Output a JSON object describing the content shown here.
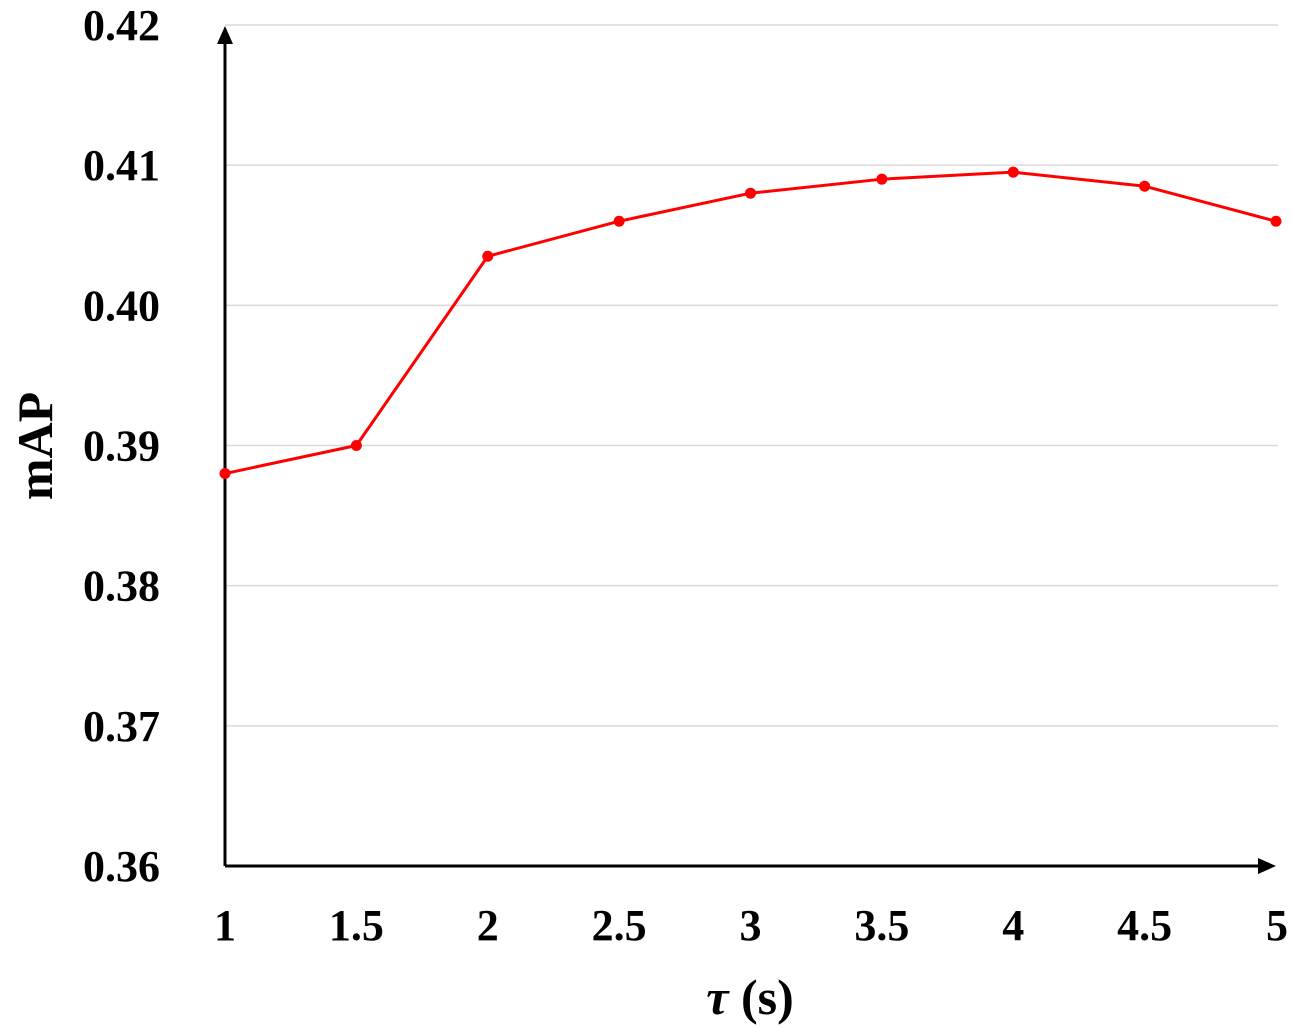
{
  "chart_data": {
    "type": "line",
    "xlabel_symbol": "τ",
    "xlabel_unit": " (s)",
    "ylabel": "mAP",
    "x": [
      1,
      1.5,
      2,
      2.5,
      3,
      3.5,
      4,
      4.5,
      5
    ],
    "x_tick_labels": [
      "1",
      "1.5",
      "2",
      "2.5",
      "3",
      "3.5",
      "4",
      "4.5",
      "5"
    ],
    "y_ticks": [
      0.36,
      0.37,
      0.38,
      0.39,
      0.4,
      0.41,
      0.42
    ],
    "y_tick_labels": [
      "0.36",
      "0.37",
      "0.38",
      "0.39",
      "0.40",
      "0.41",
      "0.42"
    ],
    "xlim": [
      1,
      5
    ],
    "ylim": [
      0.36,
      0.42
    ],
    "grid": "horizontal",
    "series": [
      {
        "values": [
          0.388,
          0.39,
          0.4035,
          0.406,
          0.408,
          0.409,
          0.4095,
          0.4085,
          0.406
        ],
        "color": "#ff0000",
        "marker": "circle"
      }
    ],
    "grid_color": "#d9d9d9",
    "axis_color": "#000000"
  }
}
